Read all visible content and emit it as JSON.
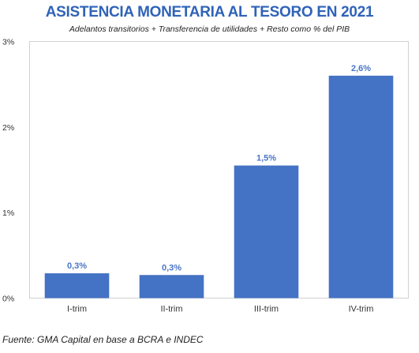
{
  "title": "ASISTENCIA MONETARIA AL TESORO EN 2021",
  "subtitle": "Adelantos transitorios + Transferencia de utilidades + Resto como % del PIB",
  "source": "Fuente: GMA Capital en base a BCRA e INDEC",
  "colors": {
    "title": "#2f63b8",
    "bar": "#4472c4",
    "label": "#4a76c7"
  },
  "chart_data": {
    "type": "bar",
    "title": "ASISTENCIA MONETARIA AL TESORO EN 2021",
    "subtitle": "Adelantos transitorios + Transferencia de utilidades + Resto como % del PIB",
    "categories": [
      "I-trim",
      "II-trim",
      "III-trim",
      "IV-trim"
    ],
    "values": [
      0.29,
      0.27,
      1.55,
      2.6
    ],
    "data_labels": [
      "0,3%",
      "0,3%",
      "1,5%",
      "2,6%"
    ],
    "y_ticks": [
      {
        "value": 0,
        "label": "0%"
      },
      {
        "value": 1,
        "label": "1%"
      },
      {
        "value": 2,
        "label": "2%"
      },
      {
        "value": 3,
        "label": "3%"
      }
    ],
    "ylim": [
      0,
      3
    ],
    "xlabel": "",
    "ylabel": "",
    "grid": false,
    "legend": "none"
  }
}
